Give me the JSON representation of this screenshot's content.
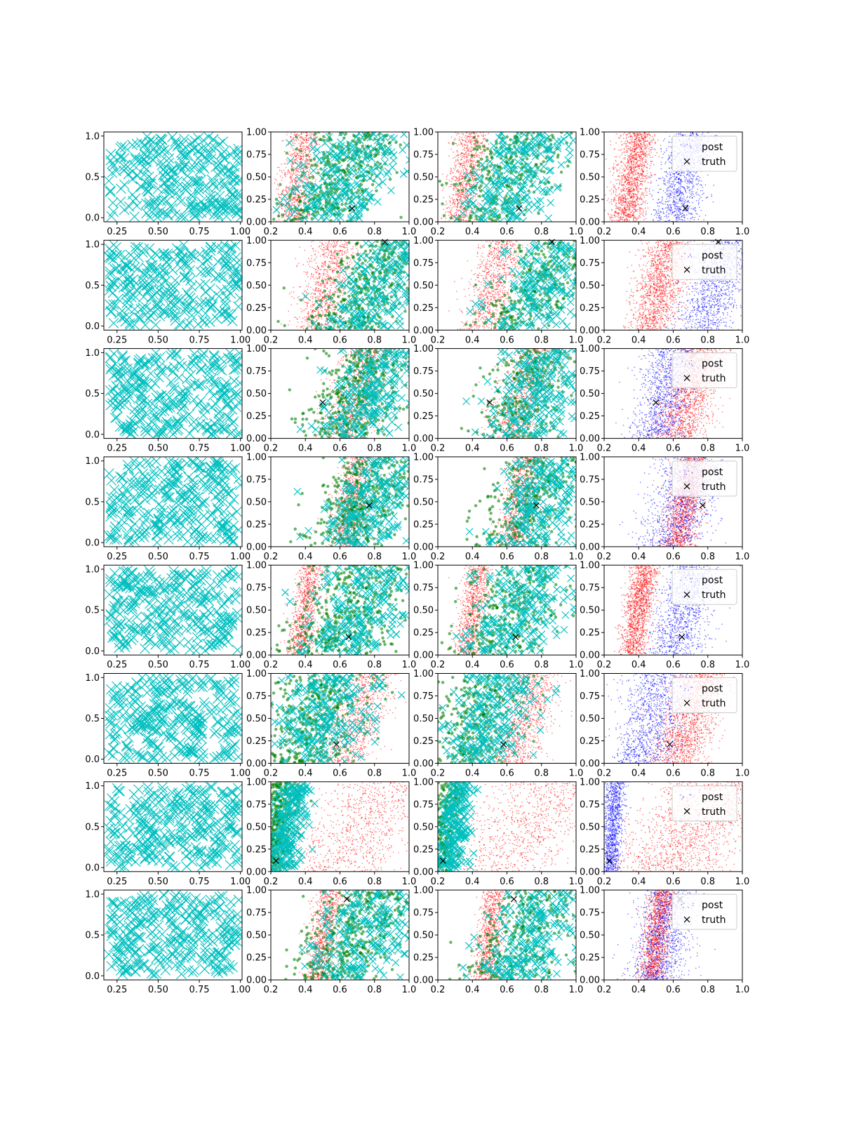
{
  "figure": {
    "rows": 8,
    "cols": 4,
    "colors": {
      "cyan": "#00bfbf",
      "green": "#008000",
      "red": "#ff0000",
      "blue": "#0000ff",
      "black": "#000000"
    }
  },
  "legend": {
    "entries": [
      {
        "label": "post",
        "marker": "point",
        "color": "#0000ff"
      },
      {
        "label": "truth",
        "marker": "x",
        "color": "#000000"
      }
    ],
    "placement": "upper-right"
  },
  "chart_data": [
    {
      "panel": "column-1",
      "type": "scatter",
      "marker": "x",
      "color": "#00bfbf",
      "xlim": [
        0.17,
        1.01
      ],
      "ylim": [
        -0.05,
        1.05
      ],
      "xticks": [
        0.25,
        0.5,
        0.75,
        1.0
      ],
      "xtick_labels": [
        "0.25",
        "0.50",
        "0.75",
        "1.00"
      ],
      "yticks": [
        0.0,
        0.5,
        1.0
      ],
      "ytick_labels": [
        "0.0",
        "0.5",
        "1.0"
      ],
      "x_range": [
        0.2,
        1.0
      ],
      "y_range": [
        0.0,
        1.0
      ],
      "note_rows": 8
    },
    {
      "panel": "columns-2-4",
      "type": "scatter",
      "xlim": [
        0.2,
        1.0
      ],
      "ylim": [
        0.0,
        1.0
      ],
      "xticks": [
        0.2,
        0.4,
        0.6,
        0.8,
        1.0
      ],
      "xtick_labels": [
        "0.2",
        "0.4",
        "0.6",
        "0.8",
        "1.0"
      ],
      "yticks": [
        0.0,
        0.25,
        0.5,
        0.75,
        1.0
      ],
      "ytick_labels": [
        "0.00",
        "0.25",
        "0.50",
        "0.75",
        "1.00"
      ],
      "rows": [
        {
          "truth": [
            0.67,
            0.15
          ],
          "red_band": [
            0.32,
            0.4,
            0.05
          ],
          "blue_band": [
            0.6,
            0.71,
            0.07
          ],
          "cyan_band": [
            0.5,
            0.77,
            0.14
          ]
        },
        {
          "truth": [
            0.86,
            0.98
          ],
          "red_band": [
            0.47,
            0.58,
            0.07
          ],
          "blue_band": [
            0.77,
            0.92,
            0.09
          ],
          "cyan_band": [
            0.68,
            0.96,
            0.14
          ]
        },
        {
          "truth": [
            0.5,
            0.4
          ],
          "red_band": [
            0.62,
            0.77,
            0.08
          ],
          "blue_band": [
            0.5,
            0.6,
            0.08
          ],
          "cyan_band": [
            0.64,
            0.84,
            0.13
          ]
        },
        {
          "truth": [
            0.77,
            0.46
          ],
          "red_band": [
            0.62,
            0.72,
            0.05
          ],
          "blue_band": [
            0.58,
            0.72,
            0.1
          ],
          "cyan_band": [
            0.66,
            0.88,
            0.13
          ]
        },
        {
          "truth": [
            0.65,
            0.2
          ],
          "red_band": [
            0.36,
            0.44,
            0.04
          ],
          "blue_band": [
            0.6,
            0.72,
            0.08
          ],
          "cyan_band": [
            0.55,
            0.8,
            0.15
          ]
        },
        {
          "truth": [
            0.58,
            0.21
          ],
          "red_band": [
            0.62,
            0.78,
            0.08
          ],
          "blue_band": [
            0.42,
            0.52,
            0.09
          ],
          "cyan_band": [
            0.4,
            0.57,
            0.14
          ]
        },
        {
          "truth": [
            0.23,
            0.12
          ],
          "red_band": [
            0.55,
            0.88,
            0.18
          ],
          "blue_band": [
            0.23,
            0.27,
            0.03
          ],
          "cyan_band": [
            0.24,
            0.32,
            0.05
          ]
        },
        {
          "truth": [
            0.64,
            0.9
          ],
          "red_band": [
            0.47,
            0.54,
            0.04
          ],
          "blue_band": [
            0.5,
            0.58,
            0.08
          ],
          "cyan_band": [
            0.6,
            0.86,
            0.15
          ]
        }
      ]
    }
  ]
}
